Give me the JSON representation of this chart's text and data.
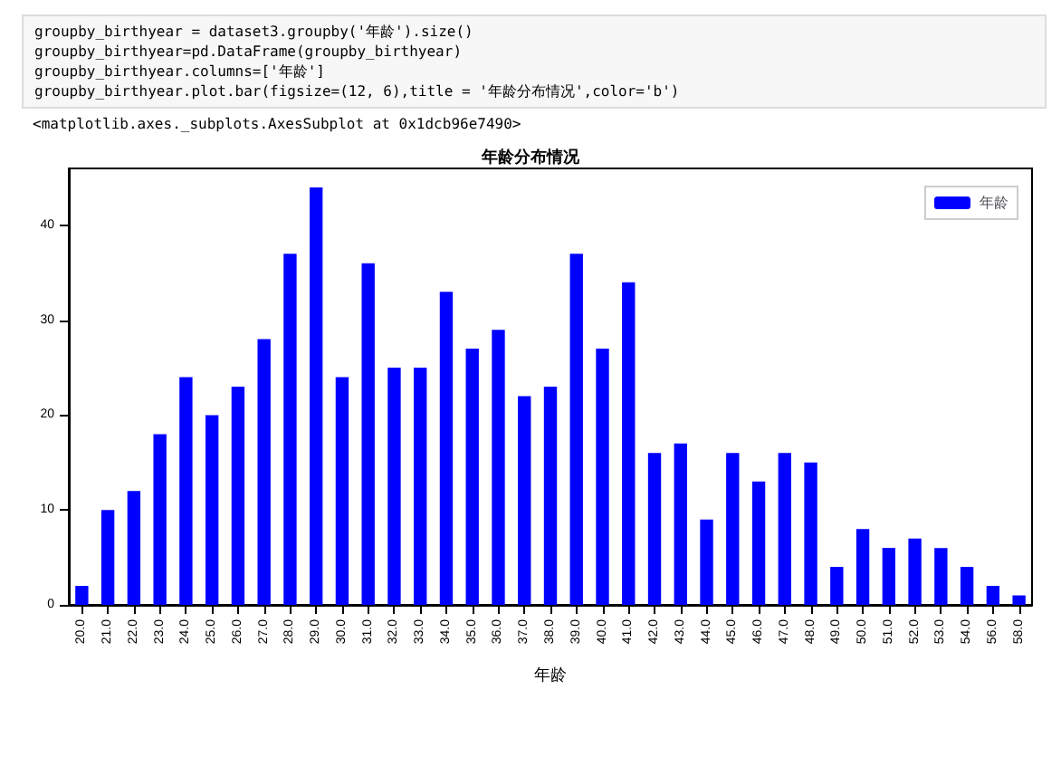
{
  "chart_data": {
    "type": "bar",
    "title": "年龄分布情况",
    "xlabel": "年龄",
    "annotations": [
      "groupby_birthyear = dataset3.groupby('年龄').size()",
      "groupby_birthyear=pd.DataFrame(groupby_birthyear)",
      "groupby_birthyear.columns=['年龄']",
      "groupby_birthyear.plot.bar(figsize=(12, 6),title = '年龄分布情况',color='b')",
      "<matplotlib.axes._subplots.AxesSubplot at 0x1dcb96e7490>"
    ],
    "categories": [
      "20.0",
      "21.0",
      "22.0",
      "23.0",
      "24.0",
      "25.0",
      "26.0",
      "27.0",
      "28.0",
      "29.0",
      "30.0",
      "31.0",
      "32.0",
      "33.0",
      "34.0",
      "35.0",
      "36.0",
      "37.0",
      "38.0",
      "39.0",
      "40.0",
      "41.0",
      "42.0",
      "43.0",
      "44.0",
      "45.0",
      "46.0",
      "47.0",
      "48.0",
      "49.0",
      "50.0",
      "51.0",
      "52.0",
      "53.0",
      "54.0",
      "56.0",
      "58.0"
    ],
    "series": [
      {
        "name": "年龄",
        "color": "#0000ff",
        "values": [
          2,
          10,
          12,
          18,
          24,
          20,
          23,
          28,
          37,
          44,
          24,
          36,
          25,
          25,
          33,
          27,
          29,
          22,
          23,
          37,
          27,
          34,
          16,
          17,
          9,
          16,
          13,
          16,
          15,
          4,
          8,
          6,
          7,
          6,
          4,
          2,
          1
        ]
      }
    ],
    "ylim": [
      0,
      46
    ],
    "yticks": [
      0,
      10,
      20,
      30,
      40
    ],
    "grid": false,
    "legend": "top right"
  }
}
